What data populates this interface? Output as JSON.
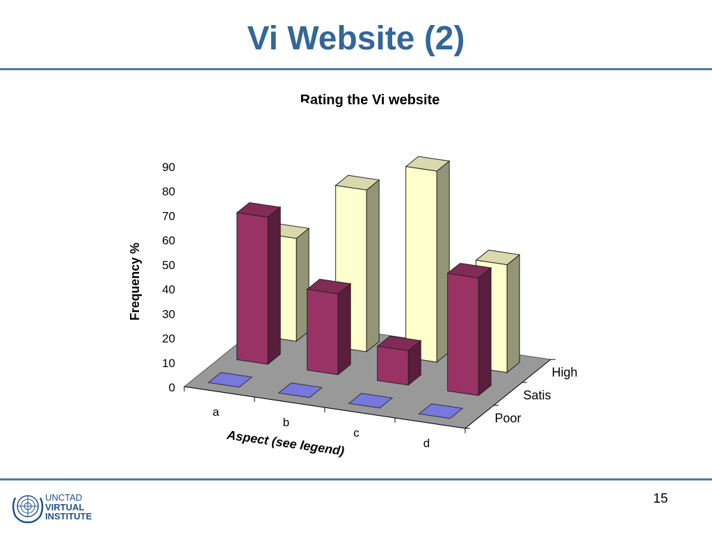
{
  "slide": {
    "title": "Vi Website (2)",
    "page_number": "15"
  },
  "logo": {
    "line1": "UNCTAD",
    "line2": "VIRTUAL",
    "line3": "INSTITUTE",
    "color": "#1f4e8c"
  },
  "chart_data": {
    "type": "bar",
    "subtype": "3d-grouped",
    "title": "Rating the Vi website",
    "xlabel": "Aspect (see legend)",
    "ylabel": "Frequency %",
    "categories": [
      "a",
      "b",
      "c",
      "d"
    ],
    "series": [
      {
        "name": "Poor",
        "values": [
          0,
          0,
          0,
          0
        ],
        "color": "#7777dd"
      },
      {
        "name": "Satis",
        "values": [
          60,
          33,
          14,
          48
        ],
        "color": "#993366"
      },
      {
        "name": "High",
        "values": [
          42,
          66,
          78,
          44
        ],
        "color": "#ffffcc"
      }
    ],
    "ylim": [
      0,
      90
    ],
    "yticks": [
      0,
      10,
      20,
      30,
      40,
      50,
      60,
      70,
      80,
      90
    ],
    "floor_color": "#999999"
  }
}
